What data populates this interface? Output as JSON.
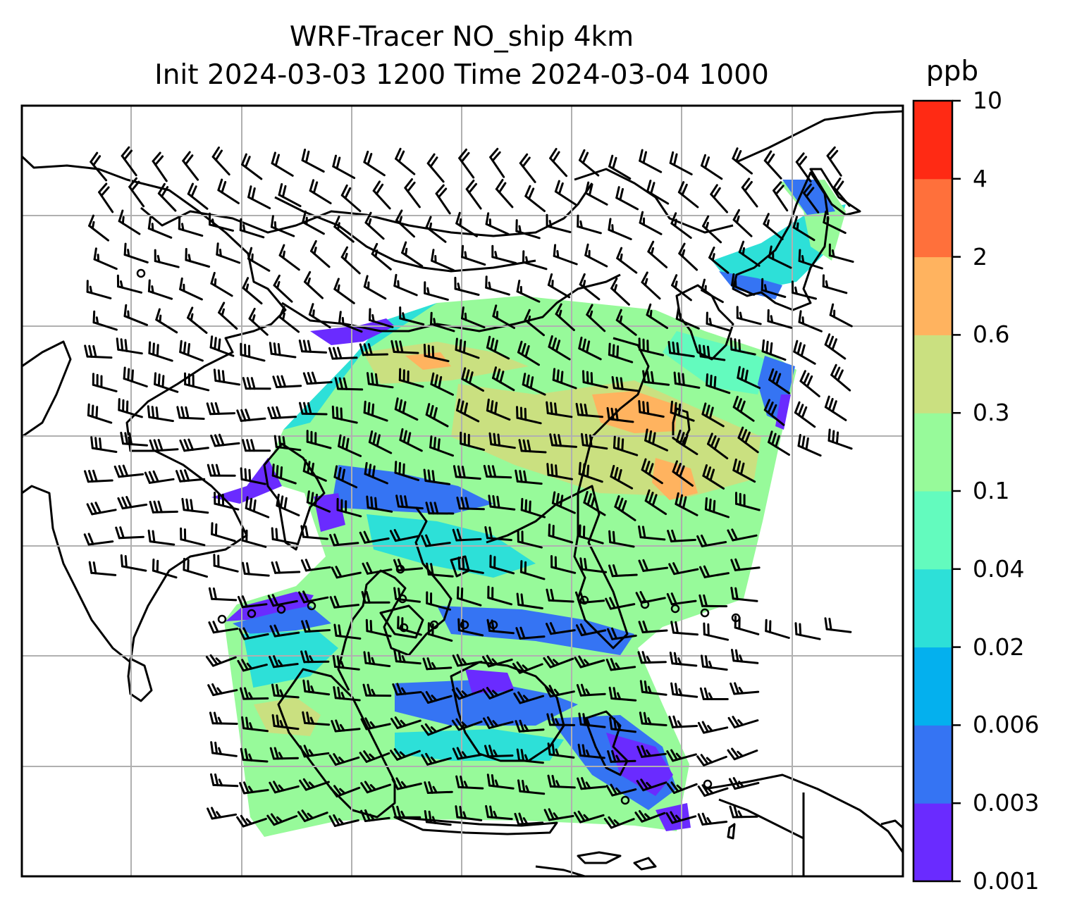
{
  "title": {
    "line1": "WRF-Tracer NO_ship 4km",
    "line2": "Init 2024-03-03 1200 Time 2024-03-04 1000"
  },
  "colorbar": {
    "unit": "ppb",
    "levels": [
      "0.001",
      "0.003",
      "0.006",
      "0.02",
      "0.04",
      "0.1",
      "0.3",
      "0.6",
      "2",
      "4",
      "10"
    ],
    "colors": [
      "#6a2bff",
      "#3574f3",
      "#04b0ee",
      "#2de0d8",
      "#63fbbe",
      "#97fa9a",
      "#cae080",
      "#ffb35f",
      "#ff703b",
      "#ff2a14"
    ]
  },
  "map": {
    "variable": "NO_ship tracer concentration",
    "overlay": "wind barbs",
    "gridlines": true,
    "tick_labels": false,
    "colors": {
      "land_outline": "#000000",
      "gridline": "#b0b0b0",
      "background": "#ffffff"
    }
  }
}
